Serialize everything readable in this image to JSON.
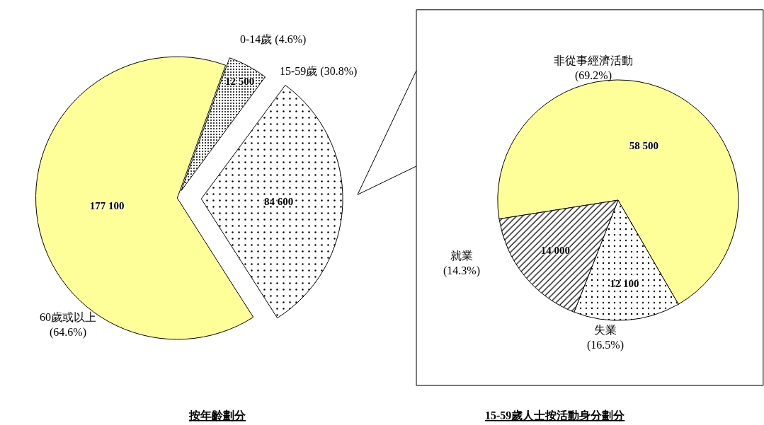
{
  "chart_data": [
    {
      "type": "pie",
      "title": "按年齡劃分",
      "categories": [
        "0-14歲 (4.6%)",
        "15-59歲 (30.8%)",
        "60歲或以上\n(64.6%)"
      ],
      "values": [
        12500,
        84600,
        177100
      ],
      "value_labels": [
        "12 500",
        "84 600",
        "177 100"
      ],
      "colors": [
        "#000000",
        "#000000",
        "#ffff99"
      ]
    },
    {
      "type": "pie",
      "title": "15-59歲人士按活動身分劃分",
      "categories": [
        "非從事經濟活動\n(69.2%)",
        "失業\n(16.5%)",
        "就業\n(14.3%)"
      ],
      "values": [
        58500,
        12100,
        14000
      ],
      "value_labels": [
        "58 500",
        "12 100",
        "14 000"
      ],
      "colors": [
        "#ffff99",
        "#000000",
        "#000000"
      ]
    }
  ]
}
